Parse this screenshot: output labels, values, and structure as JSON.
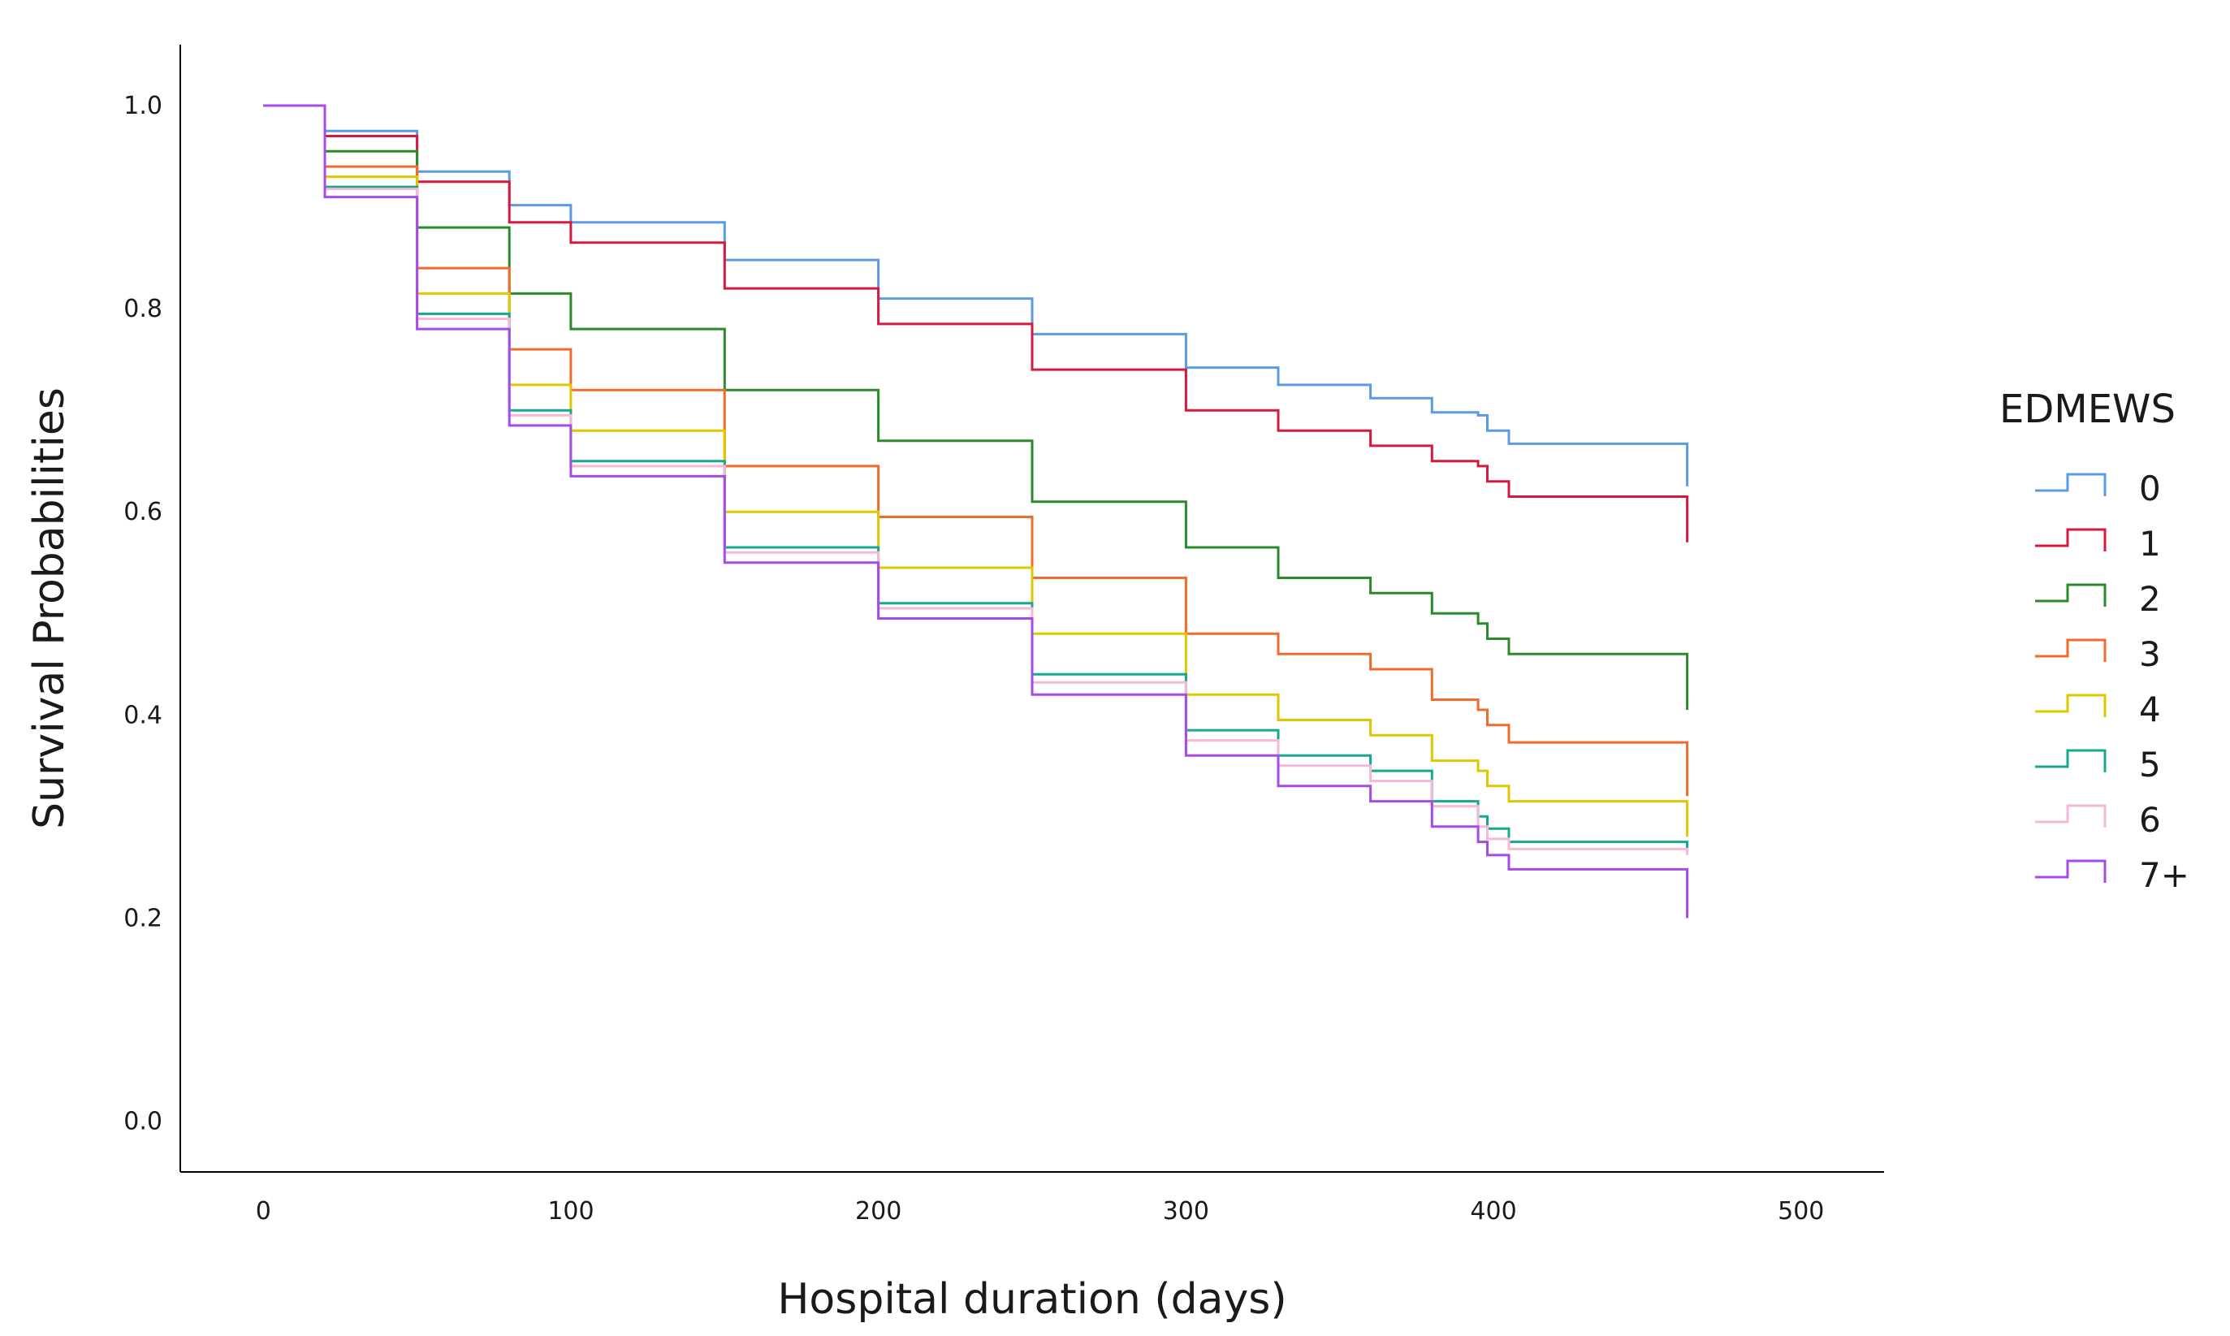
{
  "chart_data": {
    "type": "line",
    "step": true,
    "xlabel": "Hospital duration (days)",
    "ylabel": "Survival Probabilities",
    "xlim": [
      -27,
      527
    ],
    "ylim": [
      -0.05,
      1.06
    ],
    "xticks": [
      0,
      100,
      200,
      300,
      400,
      500
    ],
    "xtick_labels": [
      "0",
      "100",
      "200",
      "300",
      "400",
      "500"
    ],
    "yticks": [
      0.0,
      0.2,
      0.4,
      0.6,
      0.8,
      1.0
    ],
    "ytick_labels": [
      "0.0",
      "0.2",
      "0.4",
      "0.6",
      "0.8",
      "1.0"
    ],
    "grid": false,
    "legend": {
      "title": "EDMEWS",
      "placement": "right"
    },
    "series": [
      {
        "name": "0",
        "color": "#5b9be6",
        "x": [
          0,
          20,
          50,
          80,
          100,
          150,
          200,
          250,
          300,
          330,
          360,
          380,
          395,
          398,
          405,
          462,
          463
        ],
        "y": [
          1.0,
          0.975,
          0.935,
          0.902,
          0.885,
          0.848,
          0.81,
          0.775,
          0.742,
          0.725,
          0.712,
          0.698,
          0.695,
          0.68,
          0.667,
          0.667,
          0.625
        ]
      },
      {
        "name": "1",
        "color": "#d7193f",
        "x": [
          0,
          20,
          50,
          80,
          100,
          150,
          200,
          250,
          300,
          330,
          360,
          380,
          395,
          398,
          405,
          462,
          463
        ],
        "y": [
          1.0,
          0.97,
          0.925,
          0.885,
          0.865,
          0.82,
          0.785,
          0.74,
          0.7,
          0.68,
          0.665,
          0.65,
          0.645,
          0.63,
          0.615,
          0.615,
          0.57
        ]
      },
      {
        "name": "2",
        "color": "#2b8a2b",
        "x": [
          0,
          20,
          50,
          80,
          100,
          150,
          200,
          250,
          300,
          330,
          360,
          380,
          395,
          398,
          405,
          462,
          463
        ],
        "y": [
          1.0,
          0.955,
          0.88,
          0.815,
          0.78,
          0.72,
          0.67,
          0.61,
          0.565,
          0.535,
          0.52,
          0.5,
          0.49,
          0.475,
          0.46,
          0.46,
          0.405
        ]
      },
      {
        "name": "3",
        "color": "#f26a2e",
        "x": [
          0,
          20,
          50,
          80,
          100,
          150,
          200,
          250,
          300,
          330,
          360,
          380,
          395,
          398,
          405,
          462,
          463
        ],
        "y": [
          1.0,
          0.94,
          0.84,
          0.76,
          0.72,
          0.645,
          0.595,
          0.535,
          0.48,
          0.46,
          0.445,
          0.415,
          0.405,
          0.39,
          0.373,
          0.373,
          0.32
        ]
      },
      {
        "name": "4",
        "color": "#e0c800",
        "x": [
          0,
          20,
          50,
          80,
          100,
          150,
          200,
          250,
          300,
          330,
          360,
          380,
          395,
          398,
          405,
          462,
          463
        ],
        "y": [
          1.0,
          0.93,
          0.815,
          0.725,
          0.68,
          0.6,
          0.545,
          0.48,
          0.42,
          0.395,
          0.38,
          0.355,
          0.345,
          0.33,
          0.315,
          0.315,
          0.28
        ]
      },
      {
        "name": "5",
        "color": "#17a891",
        "x": [
          0,
          20,
          50,
          80,
          100,
          150,
          200,
          250,
          300,
          330,
          360,
          380,
          395,
          398,
          405,
          462,
          463
        ],
        "y": [
          1.0,
          0.92,
          0.795,
          0.7,
          0.65,
          0.565,
          0.51,
          0.44,
          0.385,
          0.36,
          0.345,
          0.315,
          0.3,
          0.288,
          0.275,
          0.275,
          0.265
        ]
      },
      {
        "name": "6",
        "color": "#f5b9d8",
        "x": [
          0,
          20,
          50,
          80,
          100,
          150,
          200,
          250,
          300,
          330,
          360,
          380,
          395,
          398,
          405,
          462,
          463
        ],
        "y": [
          1.0,
          0.918,
          0.79,
          0.695,
          0.645,
          0.56,
          0.505,
          0.432,
          0.375,
          0.35,
          0.335,
          0.31,
          0.29,
          0.278,
          0.268,
          0.268,
          0.262
        ]
      },
      {
        "name": "7+",
        "color": "#a64be8",
        "x": [
          0,
          20,
          50,
          80,
          100,
          150,
          200,
          250,
          300,
          330,
          360,
          380,
          395,
          398,
          405,
          462,
          463
        ],
        "y": [
          1.0,
          0.91,
          0.78,
          0.685,
          0.635,
          0.55,
          0.495,
          0.42,
          0.36,
          0.33,
          0.315,
          0.29,
          0.275,
          0.262,
          0.248,
          0.248,
          0.2
        ]
      }
    ]
  }
}
